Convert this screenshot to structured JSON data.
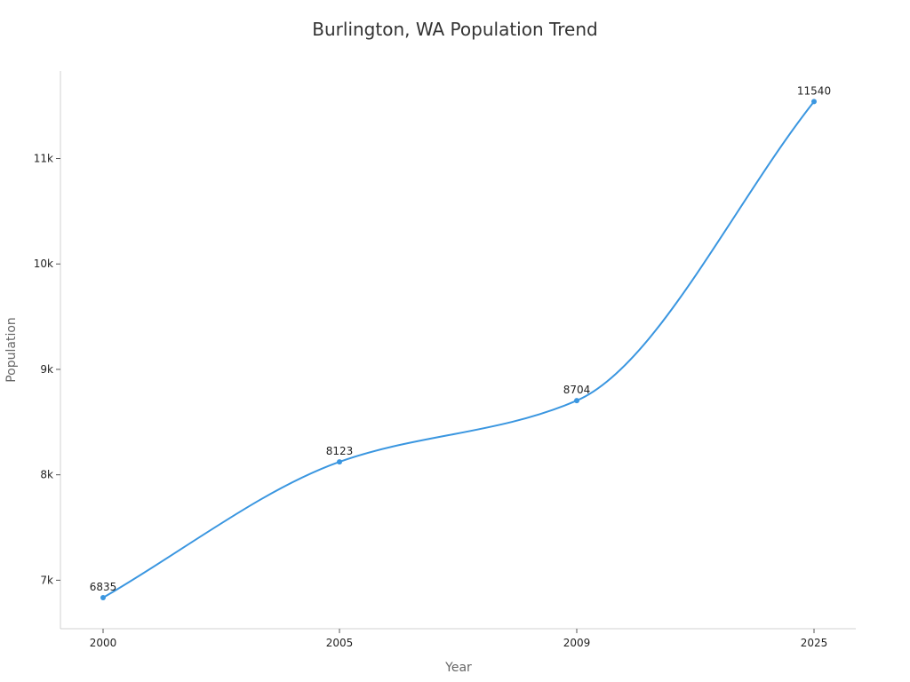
{
  "chart_data": {
    "type": "line",
    "title": "Burlington, WA Population Trend",
    "xlabel": "Year",
    "ylabel": "Population",
    "categories": [
      "2000",
      "2005",
      "2009",
      "2025"
    ],
    "series": [
      {
        "values": [
          6835,
          8123,
          8704,
          11540
        ],
        "color": "#3a96e0"
      }
    ],
    "data_labels": [
      "6835",
      "8123",
      "8704",
      "11540"
    ],
    "y_ticks": [
      7000,
      8000,
      9000,
      10000,
      11000
    ],
    "y_tick_labels": [
      "7k",
      "8k",
      "9k",
      "10k",
      "11k"
    ],
    "ylim": [
      6540,
      11830
    ],
    "grid": false,
    "legend": "none",
    "smooth": true
  }
}
